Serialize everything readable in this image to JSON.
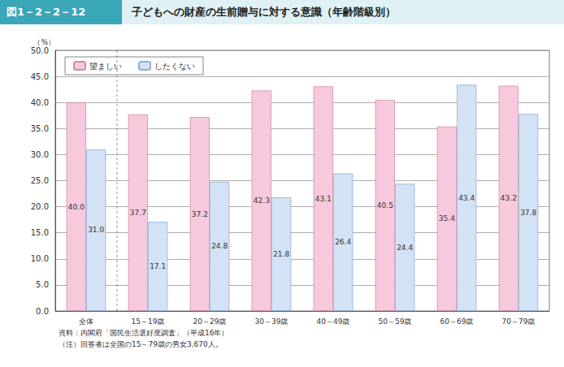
{
  "chart_data": {
    "type": "bar",
    "figure_number": "図1－2－2－12",
    "title": "子どもへの財産の生前贈与に対する意識（年齢階級別）",
    "y_label": "（%）",
    "categories": [
      "全体",
      "15～19歳",
      "20～29歳",
      "30～39歳",
      "40～49歳",
      "50～59歳",
      "60～69歳",
      "70～79歳"
    ],
    "series": [
      {
        "name": "望ましい",
        "color": "#f6c9dc",
        "values": [
          40.0,
          37.7,
          37.2,
          42.3,
          43.1,
          40.5,
          35.4,
          43.2
        ],
        "value_labels": [
          "40.0",
          "37.7",
          "37.2",
          "42.3",
          "43.1",
          "40.5",
          "35.4",
          "43.2"
        ]
      },
      {
        "name": "したくない",
        "color": "#d3e2f5",
        "values": [
          31.0,
          17.1,
          24.8,
          21.8,
          26.4,
          24.4,
          43.4,
          37.8
        ],
        "value_labels": [
          "31.0",
          "17.1",
          "24.8",
          "21.8",
          "26.4",
          "24.4",
          "43.4",
          "37.8"
        ]
      }
    ],
    "ylim": [
      0,
      50
    ],
    "yticks": [
      {
        "value": 0,
        "label": "0.0"
      },
      {
        "value": 5,
        "label": "5.0"
      },
      {
        "value": 10,
        "label": "10.0"
      },
      {
        "value": 15,
        "label": "15.0"
      },
      {
        "value": 20,
        "label": "20.0"
      },
      {
        "value": 25,
        "label": "25.0"
      },
      {
        "value": 30,
        "label": "30.0"
      },
      {
        "value": 35,
        "label": "35.0"
      },
      {
        "value": 40,
        "label": "40.0"
      },
      {
        "value": 45,
        "label": "45.0"
      },
      {
        "value": 50,
        "label": "50.0"
      }
    ],
    "grid": true,
    "legend": "top-left",
    "data_labels": true,
    "annotations": [
      "資料：内閣府「国民生活選好度調査」（平成16年）",
      "（注）回答者は全国の15～79歳の男女3,670人。"
    ]
  }
}
